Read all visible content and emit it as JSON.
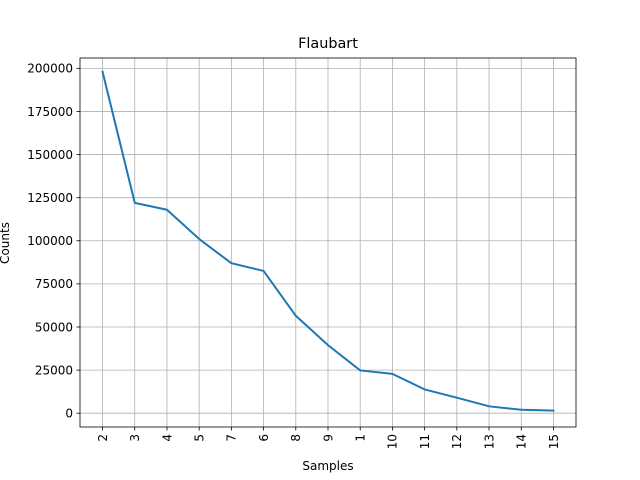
{
  "chart_data": {
    "type": "line",
    "title": "Flaubart",
    "xlabel": "Samples",
    "ylabel": "Counts",
    "categories": [
      "2",
      "3",
      "4",
      "5",
      "7",
      "6",
      "8",
      "9",
      "1",
      "10",
      "11",
      "12",
      "13",
      "14",
      "15"
    ],
    "series": [
      {
        "values": [
          198000,
          122000,
          118000,
          101000,
          87000,
          82500,
          56500,
          39500,
          24800,
          22800,
          13800,
          9000,
          4000,
          2000,
          1500
        ],
        "color": "#1f77b4"
      }
    ],
    "ylim": [
      -8000,
      206000
    ],
    "yticks": [
      0,
      25000,
      50000,
      75000,
      100000,
      125000,
      150000,
      175000,
      200000
    ],
    "grid": true,
    "x_tick_rotation": 90,
    "grid_color": "#b0b0b0"
  }
}
